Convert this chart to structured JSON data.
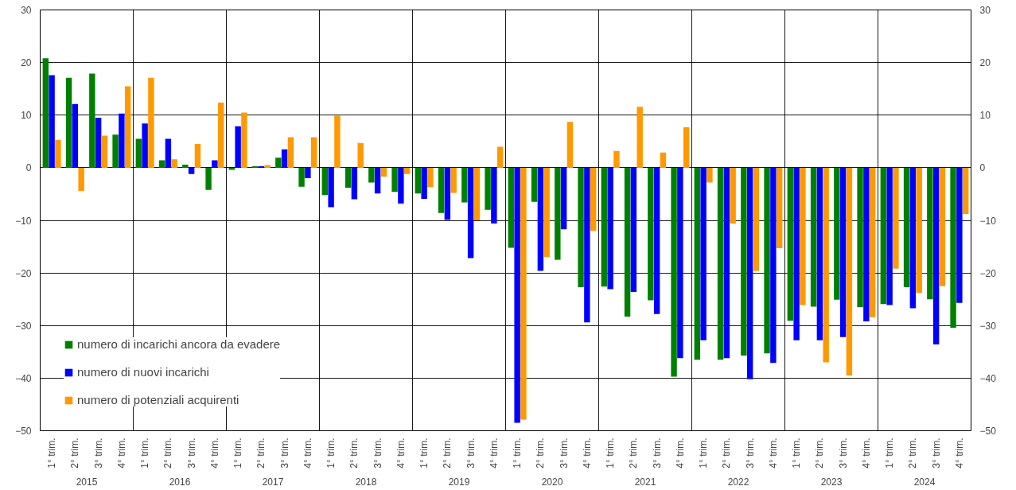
{
  "chart_data": {
    "type": "bar",
    "categories": [
      "1° trim.",
      "2° trim.",
      "3° trim.",
      "4° trim.",
      "1° trim.",
      "2° trim.",
      "3° trim.",
      "4° trim.",
      "1° trim.",
      "2° trim.",
      "3° trim.",
      "4° trim.",
      "1° trim.",
      "2° trim.",
      "3° trim.",
      "4° trim.",
      "1° trim.",
      "2° trim.",
      "3° trim.",
      "4° trim.",
      "1° trim.",
      "2° trim.",
      "3° trim.",
      "4° trim.",
      "1° trim.",
      "2° trim.",
      "3° trim.",
      "4° trim.",
      "1° trim.",
      "2° trim.",
      "3° trim.",
      "4° trim.",
      "1° trim.",
      "2° trim.",
      "3° trim.",
      "4° trim.",
      "1° trim.",
      "2° trim.",
      "3° trim.",
      "4° trim."
    ],
    "series": [
      {
        "name": "numero di incarichi ancora da evadere",
        "color": "#008000",
        "values": [
          20.8,
          17.1,
          17.9,
          6.3,
          5.5,
          1.4,
          0.6,
          -4.2,
          -0.4,
          0.3,
          1.9,
          -3.6,
          -5.2,
          -3.8,
          -2.8,
          -4.6,
          -4.9,
          -8.6,
          -6.6,
          -8.0,
          -15.2,
          -6.5,
          -17.5,
          -22.7,
          -22.6,
          -28.3,
          -25.2,
          -39.7,
          -36.5,
          -36.5,
          -35.7,
          -35.3,
          -29.1,
          -26.4,
          -25.1,
          -26.5,
          -25.9,
          -22.7,
          -25.0,
          -30.4
        ]
      },
      {
        "name": "numero di nuovi incarichi",
        "color": "#0000ff",
        "values": [
          17.6,
          12.1,
          9.5,
          10.3,
          8.4,
          5.5,
          -1.2,
          1.4,
          7.9,
          0.3,
          3.5,
          -2.0,
          -7.5,
          -6.0,
          -4.9,
          -6.8,
          -5.9,
          -9.9,
          -17.2,
          -10.6,
          -48.5,
          -19.6,
          -11.7,
          -29.4,
          -23.1,
          -23.6,
          -27.8,
          -36.2,
          -32.8,
          -36.2,
          -40.2,
          -37.1,
          -32.8,
          -32.8,
          -32.2,
          -29.2,
          -26.1,
          -26.7,
          -33.6,
          -25.7
        ]
      },
      {
        "name": "numero di potenziali acquirenti",
        "color": "#ff9900",
        "values": [
          5.3,
          -4.4,
          6.1,
          15.5,
          17.1,
          1.6,
          4.5,
          12.4,
          10.5,
          0.5,
          5.8,
          5.8,
          9.9,
          4.7,
          -1.7,
          -1.2,
          -3.7,
          -4.8,
          -10.0,
          4.0,
          -47.9,
          -17.0,
          8.7,
          -12.0,
          3.2,
          11.6,
          2.9,
          7.7,
          -2.8,
          -10.6,
          -19.6,
          -15.3,
          -26.1,
          -37.0,
          -39.5,
          -28.4,
          -19.2,
          -23.8,
          -22.5,
          -8.8
        ]
      }
    ],
    "annotations": [
      "2015",
      "2016",
      "2017",
      "2018",
      "2019",
      "2020",
      "2021",
      "2022",
      "2023",
      "2024"
    ],
    "ylim": [
      -50,
      30
    ],
    "yticks": [
      -50,
      -40,
      -30,
      -20,
      -10,
      0,
      10,
      20,
      30
    ],
    "y2lim": [
      -50,
      30
    ],
    "y2ticks": [
      -50,
      -40,
      -30,
      -20,
      -10,
      0,
      10,
      20,
      30
    ],
    "grid": "y",
    "legend": "bottom left"
  }
}
